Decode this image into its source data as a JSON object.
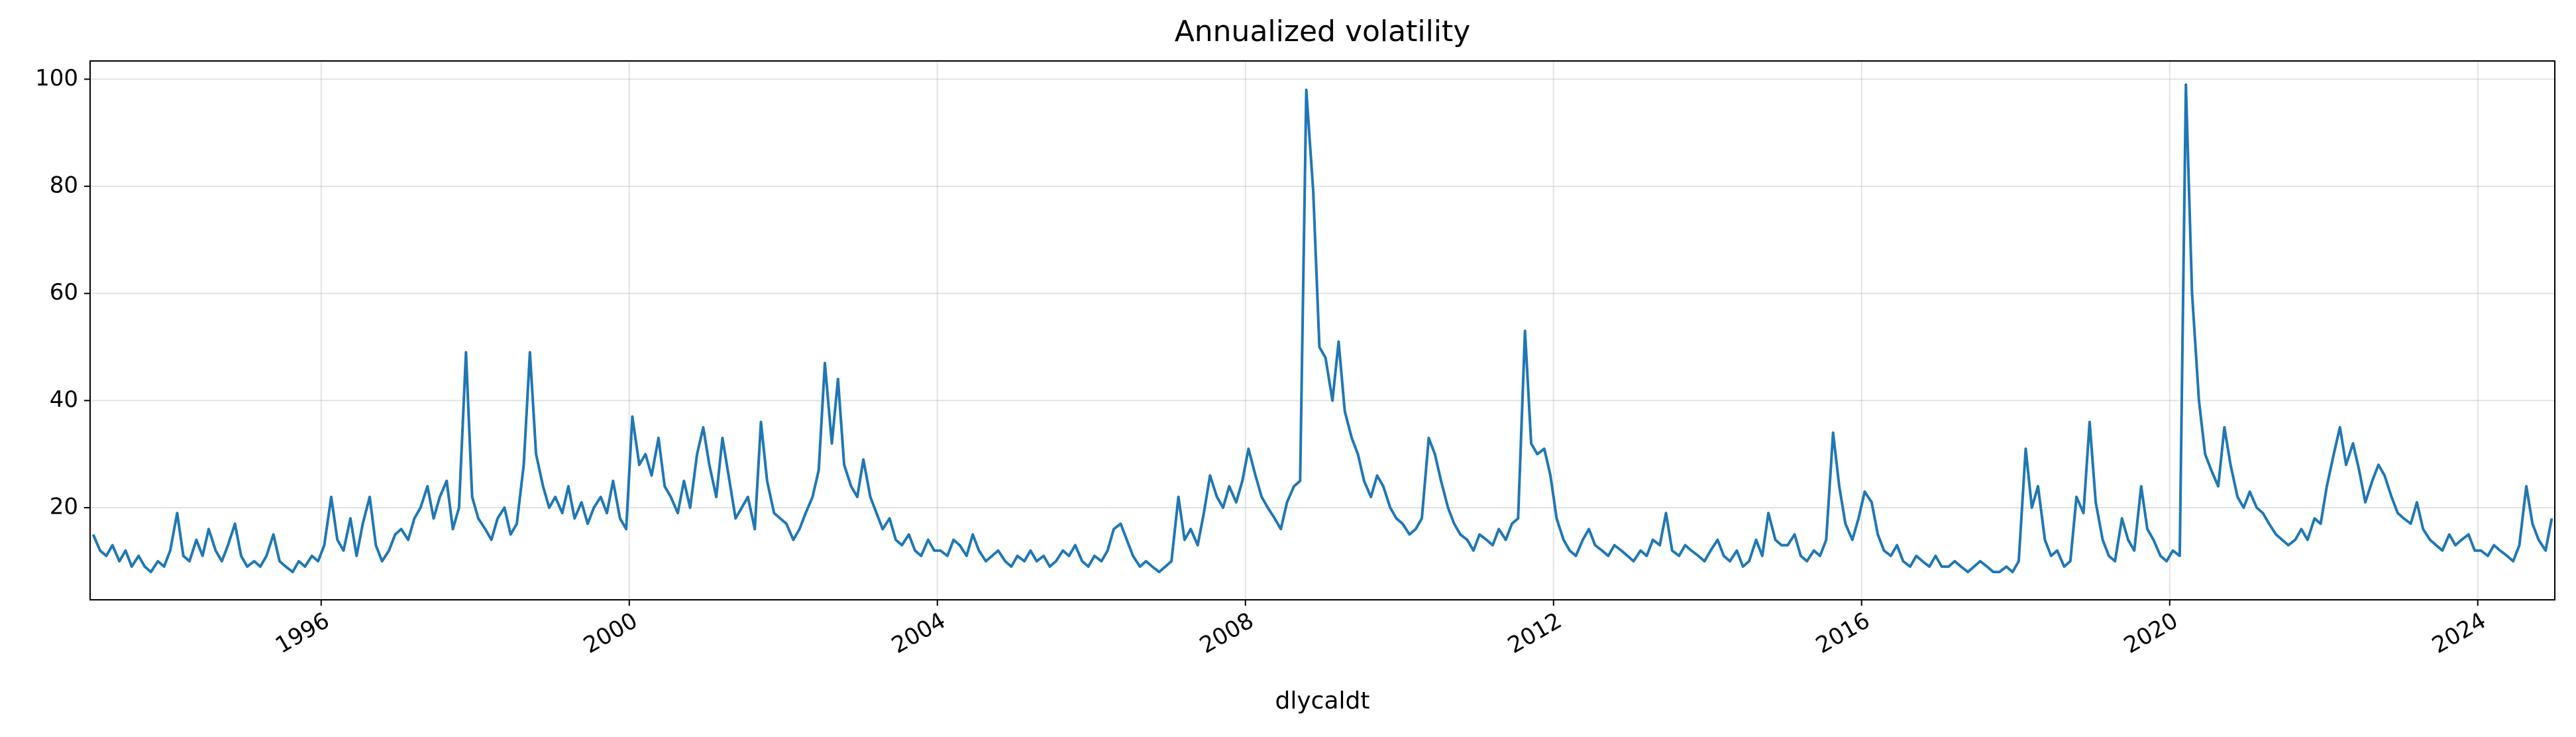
{
  "chart_data": {
    "type": "line",
    "title": "Annualized volatility",
    "x_label": "dlycaldt",
    "color": "#1f77b4",
    "grid": true,
    "xlim": [
      1993.0,
      2025.0
    ],
    "xticks": [
      1996,
      2000,
      2004,
      2008,
      2012,
      2016,
      2020,
      2024
    ],
    "ylim": [
      2.8,
      103.4
    ],
    "yticks": [
      20,
      40,
      60,
      80,
      100
    ],
    "x": [
      1993.04,
      1993.13,
      1993.21,
      1993.29,
      1993.38,
      1993.46,
      1993.54,
      1993.63,
      1993.71,
      1993.79,
      1993.88,
      1993.96,
      1994.04,
      1994.13,
      1994.21,
      1994.29,
      1994.38,
      1994.46,
      1994.54,
      1994.63,
      1994.71,
      1994.79,
      1994.88,
      1994.96,
      1995.04,
      1995.13,
      1995.21,
      1995.29,
      1995.38,
      1995.46,
      1995.54,
      1995.63,
      1995.71,
      1995.79,
      1995.88,
      1995.96,
      1996.04,
      1996.13,
      1996.21,
      1996.29,
      1996.38,
      1996.46,
      1996.54,
      1996.63,
      1996.71,
      1996.79,
      1996.88,
      1996.96,
      1997.04,
      1997.13,
      1997.21,
      1997.29,
      1997.38,
      1997.46,
      1997.54,
      1997.63,
      1997.71,
      1997.79,
      1997.88,
      1997.96,
      1998.04,
      1998.13,
      1998.21,
      1998.29,
      1998.38,
      1998.46,
      1998.54,
      1998.63,
      1998.71,
      1998.79,
      1998.88,
      1998.96,
      1999.04,
      1999.13,
      1999.21,
      1999.29,
      1999.38,
      1999.46,
      1999.54,
      1999.63,
      1999.71,
      1999.79,
      1999.88,
      1999.96,
      2000.04,
      2000.13,
      2000.21,
      2000.29,
      2000.38,
      2000.46,
      2000.54,
      2000.63,
      2000.71,
      2000.79,
      2000.88,
      2000.96,
      2001.04,
      2001.13,
      2001.21,
      2001.29,
      2001.38,
      2001.46,
      2001.54,
      2001.63,
      2001.71,
      2001.79,
      2001.88,
      2001.96,
      2002.04,
      2002.13,
      2002.21,
      2002.29,
      2002.38,
      2002.46,
      2002.54,
      2002.63,
      2002.71,
      2002.79,
      2002.88,
      2002.96,
      2003.04,
      2003.13,
      2003.21,
      2003.29,
      2003.38,
      2003.46,
      2003.54,
      2003.63,
      2003.71,
      2003.79,
      2003.88,
      2003.96,
      2004.04,
      2004.13,
      2004.21,
      2004.29,
      2004.38,
      2004.46,
      2004.54,
      2004.63,
      2004.71,
      2004.79,
      2004.88,
      2004.96,
      2005.04,
      2005.13,
      2005.21,
      2005.29,
      2005.38,
      2005.46,
      2005.54,
      2005.63,
      2005.71,
      2005.79,
      2005.88,
      2005.96,
      2006.04,
      2006.13,
      2006.21,
      2006.29,
      2006.38,
      2006.46,
      2006.54,
      2006.63,
      2006.71,
      2006.79,
      2006.88,
      2006.96,
      2007.04,
      2007.13,
      2007.21,
      2007.29,
      2007.38,
      2007.46,
      2007.54,
      2007.63,
      2007.71,
      2007.79,
      2007.88,
      2007.96,
      2008.04,
      2008.13,
      2008.21,
      2008.29,
      2008.38,
      2008.46,
      2008.54,
      2008.63,
      2008.71,
      2008.79,
      2008.88,
      2008.96,
      2009.04,
      2009.13,
      2009.21,
      2009.29,
      2009.38,
      2009.46,
      2009.54,
      2009.63,
      2009.71,
      2009.79,
      2009.88,
      2009.96,
      2010.04,
      2010.13,
      2010.21,
      2010.29,
      2010.38,
      2010.46,
      2010.54,
      2010.63,
      2010.71,
      2010.79,
      2010.88,
      2010.96,
      2011.04,
      2011.13,
      2011.21,
      2011.29,
      2011.38,
      2011.46,
      2011.54,
      2011.63,
      2011.71,
      2011.79,
      2011.88,
      2011.96,
      2012.04,
      2012.13,
      2012.21,
      2012.29,
      2012.38,
      2012.46,
      2012.54,
      2012.63,
      2012.71,
      2012.79,
      2012.88,
      2012.96,
      2013.04,
      2013.13,
      2013.21,
      2013.29,
      2013.38,
      2013.46,
      2013.54,
      2013.63,
      2013.71,
      2013.79,
      2013.88,
      2013.96,
      2014.04,
      2014.13,
      2014.21,
      2014.29,
      2014.38,
      2014.46,
      2014.54,
      2014.63,
      2014.71,
      2014.79,
      2014.88,
      2014.96,
      2015.04,
      2015.13,
      2015.21,
      2015.29,
      2015.38,
      2015.46,
      2015.54,
      2015.63,
      2015.71,
      2015.79,
      2015.88,
      2015.96,
      2016.04,
      2016.13,
      2016.21,
      2016.29,
      2016.38,
      2016.46,
      2016.54,
      2016.63,
      2016.71,
      2016.79,
      2016.88,
      2016.96,
      2017.04,
      2017.13,
      2017.21,
      2017.29,
      2017.38,
      2017.46,
      2017.54,
      2017.63,
      2017.71,
      2017.79,
      2017.88,
      2017.96,
      2018.04,
      2018.13,
      2018.21,
      2018.29,
      2018.38,
      2018.46,
      2018.54,
      2018.63,
      2018.71,
      2018.79,
      2018.88,
      2018.96,
      2019.04,
      2019.13,
      2019.21,
      2019.29,
      2019.38,
      2019.46,
      2019.54,
      2019.63,
      2019.71,
      2019.79,
      2019.88,
      2019.96,
      2020.04,
      2020.13,
      2020.21,
      2020.29,
      2020.38,
      2020.46,
      2020.54,
      2020.63,
      2020.71,
      2020.79,
      2020.88,
      2020.96,
      2021.04,
      2021.13,
      2021.21,
      2021.29,
      2021.38,
      2021.46,
      2021.54,
      2021.63,
      2021.71,
      2021.79,
      2021.88,
      2021.96,
      2022.04,
      2022.13,
      2022.21,
      2022.29,
      2022.38,
      2022.46,
      2022.54,
      2022.63,
      2022.71,
      2022.79,
      2022.88,
      2022.96,
      2023.04,
      2023.13,
      2023.21,
      2023.29,
      2023.38,
      2023.46,
      2023.54,
      2023.63,
      2023.71,
      2023.79,
      2023.88,
      2023.96,
      2024.04,
      2024.13,
      2024.21,
      2024.29,
      2024.38,
      2024.46,
      2024.54,
      2024.63,
      2024.71,
      2024.79,
      2024.88,
      2024.96
    ],
    "values": [
      15,
      12,
      11,
      13,
      10,
      12,
      9,
      11,
      9,
      8,
      10,
      9,
      12,
      19,
      11,
      10,
      14,
      11,
      16,
      12,
      10,
      13,
      17,
      11,
      9,
      10,
      9,
      11,
      15,
      10,
      9,
      8,
      10,
      9,
      11,
      10,
      13,
      22,
      14,
      12,
      18,
      11,
      17,
      22,
      13,
      10,
      12,
      15,
      16,
      14,
      18,
      20,
      24,
      18,
      22,
      25,
      16,
      20,
      49,
      22,
      18,
      16,
      14,
      18,
      20,
      15,
      17,
      28,
      49,
      30,
      24,
      20,
      22,
      19,
      24,
      18,
      21,
      17,
      20,
      22,
      19,
      25,
      18,
      16,
      37,
      28,
      30,
      26,
      33,
      24,
      22,
      19,
      25,
      20,
      30,
      35,
      28,
      22,
      33,
      26,
      18,
      20,
      22,
      16,
      36,
      25,
      19,
      18,
      17,
      14,
      16,
      19,
      22,
      27,
      47,
      32,
      44,
      28,
      24,
      22,
      29,
      22,
      19,
      16,
      18,
      14,
      13,
      15,
      12,
      11,
      14,
      12,
      12,
      11,
      14,
      13,
      11,
      15,
      12,
      10,
      11,
      12,
      10,
      9,
      11,
      10,
      12,
      10,
      11,
      9,
      10,
      12,
      11,
      13,
      10,
      9,
      11,
      10,
      12,
      16,
      17,
      14,
      11,
      9,
      10,
      9,
      8,
      9,
      10,
      22,
      14,
      16,
      13,
      19,
      26,
      22,
      20,
      24,
      21,
      25,
      31,
      26,
      22,
      20,
      18,
      16,
      21,
      24,
      25,
      98,
      79,
      50,
      48,
      40,
      51,
      38,
      33,
      30,
      25,
      22,
      26,
      24,
      20,
      18,
      17,
      15,
      16,
      18,
      33,
      30,
      25,
      20,
      17,
      15,
      14,
      12,
      15,
      14,
      13,
      16,
      14,
      17,
      18,
      53,
      32,
      30,
      31,
      26,
      18,
      14,
      12,
      11,
      14,
      16,
      13,
      12,
      11,
      13,
      12,
      11,
      10,
      12,
      11,
      14,
      13,
      19,
      12,
      11,
      13,
      12,
      11,
      10,
      12,
      14,
      11,
      10,
      12,
      9,
      10,
      14,
      11,
      19,
      14,
      13,
      13,
      15,
      11,
      10,
      12,
      11,
      14,
      34,
      24,
      17,
      14,
      18,
      23,
      21,
      15,
      12,
      11,
      13,
      10,
      9,
      11,
      10,
      9,
      11,
      9,
      9,
      10,
      9,
      8,
      9,
      10,
      9,
      8,
      8,
      9,
      8,
      10,
      31,
      20,
      24,
      14,
      11,
      12,
      9,
      10,
      22,
      19,
      36,
      21,
      14,
      11,
      10,
      18,
      14,
      12,
      24,
      16,
      14,
      11,
      10,
      12,
      11,
      99,
      60,
      40,
      30,
      27,
      24,
      35,
      28,
      22,
      20,
      23,
      20,
      19,
      17,
      15,
      14,
      13,
      14,
      16,
      14,
      18,
      17,
      24,
      30,
      35,
      28,
      32,
      27,
      21,
      25,
      28,
      26,
      22,
      19,
      18,
      17,
      21,
      16,
      14,
      13,
      12,
      15,
      13,
      14,
      15,
      12,
      12,
      11,
      13,
      12,
      11,
      10,
      13,
      24,
      17,
      14,
      12,
      18
    ]
  }
}
